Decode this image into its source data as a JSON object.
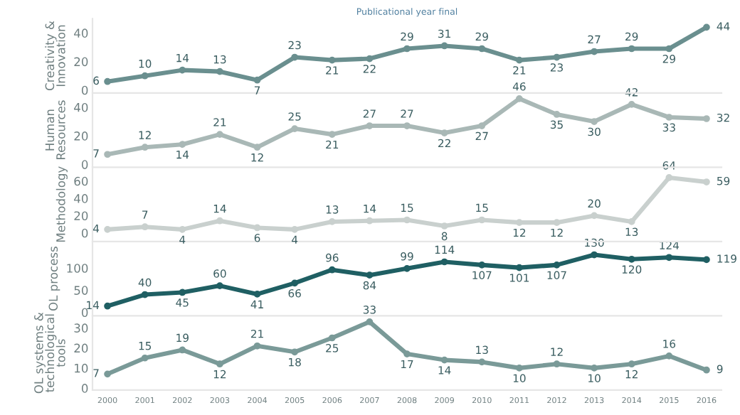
{
  "chart_data": [
    {
      "type": "line",
      "title": "Publicational year final",
      "ylabel": "Creativity &\nInnovation",
      "categories": [
        "2000",
        "2001",
        "2002",
        "2003",
        "2004",
        "2005",
        "2006",
        "2007",
        "2008",
        "2009",
        "2010",
        "2011",
        "2012",
        "2013",
        "2014",
        "2015",
        "2016"
      ],
      "series": [
        {
          "color": "#6a8f8f",
          "values": [
            6,
            10,
            14,
            13,
            7,
            23,
            21,
            22,
            29,
            31,
            29,
            21,
            23,
            27,
            29,
            29,
            44
          ]
        }
      ],
      "ylim": [
        -2,
        50
      ],
      "yticks": [
        0,
        20,
        40
      ],
      "data_labels": true,
      "marker": "circle",
      "grid": false,
      "tick_labels": "y"
    },
    {
      "type": "line",
      "ylabel": "Human\nResources",
      "categories": [
        "2000",
        "2001",
        "2002",
        "2003",
        "2004",
        "2005",
        "2006",
        "2007",
        "2008",
        "2009",
        "2010",
        "2011",
        "2012",
        "2013",
        "2014",
        "2015",
        "2016"
      ],
      "series": [
        {
          "color": "#a9b8b6",
          "values": [
            7,
            12,
            14,
            21,
            12,
            25,
            21,
            27,
            27,
            22,
            27,
            46,
            35,
            30,
            42,
            33,
            32
          ]
        }
      ],
      "ylim": [
        -2,
        50
      ],
      "yticks": [
        0,
        20,
        40
      ],
      "data_labels": true,
      "marker": "circle",
      "grid": false,
      "tick_labels": "y"
    },
    {
      "type": "line",
      "ylabel": "Methodology",
      "categories": [
        "2000",
        "2001",
        "2002",
        "2003",
        "2004",
        "2005",
        "2006",
        "2007",
        "2008",
        "2009",
        "2010",
        "2011",
        "2012",
        "2013",
        "2014",
        "2015",
        "2016"
      ],
      "series": [
        {
          "color": "#c9d0ce",
          "values": [
            4,
            7,
            4,
            14,
            6,
            4,
            13,
            14,
            15,
            8,
            15,
            12,
            12,
            20,
            13,
            64,
            59
          ]
        }
      ],
      "ylim": [
        -10,
        76
      ],
      "yticks": [
        0,
        20,
        40,
        60
      ],
      "data_labels": true,
      "marker": "circle",
      "grid": false,
      "tick_labels": "y"
    },
    {
      "type": "line",
      "ylabel": "OL process",
      "categories": [
        "2000",
        "2001",
        "2002",
        "2003",
        "2004",
        "2005",
        "2006",
        "2007",
        "2008",
        "2009",
        "2010",
        "2011",
        "2012",
        "2013",
        "2014",
        "2015",
        "2016"
      ],
      "series": [
        {
          "color": "#1f5f63",
          "values": [
            14,
            40,
            45,
            60,
            41,
            66,
            96,
            84,
            99,
            114,
            107,
            101,
            107,
            130,
            120,
            124,
            119
          ]
        }
      ],
      "ylim": [
        -8,
        160
      ],
      "yticks": [
        0,
        50,
        100
      ],
      "data_labels": true,
      "marker": "circle",
      "grid": false,
      "tick_labels": "y"
    },
    {
      "type": "line",
      "ylabel": "OL systems &\ntechnological\ntools",
      "categories": [
        "2000",
        "2001",
        "2002",
        "2003",
        "2004",
        "2005",
        "2006",
        "2007",
        "2008",
        "2009",
        "2010",
        "2011",
        "2012",
        "2013",
        "2014",
        "2015",
        "2016"
      ],
      "series": [
        {
          "color": "#7a9a98",
          "values": [
            7,
            15,
            19,
            12,
            21,
            18,
            25,
            33,
            17,
            14,
            13,
            10,
            12,
            10,
            12,
            16,
            9
          ]
        }
      ],
      "ylim": [
        -1,
        36
      ],
      "yticks": [
        0,
        10,
        20,
        30
      ],
      "data_labels": true,
      "marker": "circle",
      "grid": false
    }
  ]
}
